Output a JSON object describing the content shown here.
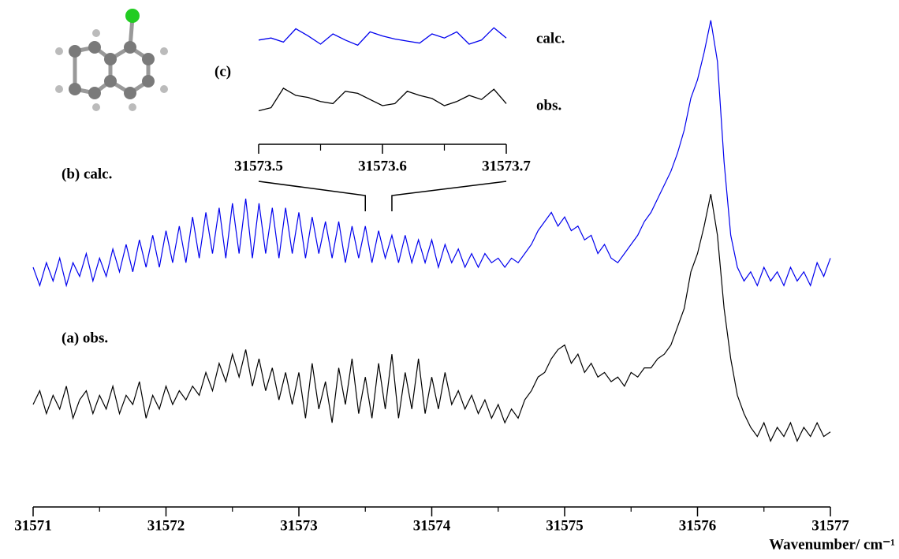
{
  "chart_data": [
    {
      "type": "line",
      "x_label": "Wavenumber/ cm⁻¹",
      "x": [
        31571,
        31571.05,
        31571.1,
        31571.15,
        31571.2,
        31571.25,
        31571.3,
        31571.35,
        31571.4,
        31571.45,
        31571.5,
        31571.55,
        31571.6,
        31571.65,
        31571.7,
        31571.75,
        31571.8,
        31571.85,
        31571.9,
        31571.95,
        31572,
        31572.05,
        31572.1,
        31572.15,
        31572.2,
        31572.25,
        31572.3,
        31572.35,
        31572.4,
        31572.45,
        31572.5,
        31572.55,
        31572.6,
        31572.65,
        31572.7,
        31572.75,
        31572.8,
        31572.85,
        31572.9,
        31572.95,
        31573,
        31573.05,
        31573.1,
        31573.15,
        31573.2,
        31573.25,
        31573.3,
        31573.35,
        31573.4,
        31573.45,
        31573.5,
        31573.55,
        31573.6,
        31573.65,
        31573.7,
        31573.75,
        31573.8,
        31573.85,
        31573.9,
        31573.95,
        31574,
        31574.05,
        31574.1,
        31574.15,
        31574.2,
        31574.25,
        31574.3,
        31574.35,
        31574.4,
        31574.45,
        31574.5,
        31574.55,
        31574.6,
        31574.65,
        31574.7,
        31574.75,
        31574.8,
        31574.85,
        31574.9,
        31574.95,
        31575,
        31575.05,
        31575.1,
        31575.15,
        31575.2,
        31575.25,
        31575.3,
        31575.35,
        31575.4,
        31575.45,
        31575.5,
        31575.55,
        31575.6,
        31575.65,
        31575.7,
        31575.75,
        31575.8,
        31575.85,
        31575.9,
        31575.95,
        31576,
        31576.05,
        31576.1,
        31576.15,
        31576.2,
        31576.25,
        31576.3,
        31576.35,
        31576.4,
        31576.45,
        31576.5,
        31576.55,
        31576.6,
        31576.65,
        31576.7,
        31576.75,
        31576.8,
        31576.85,
        31576.9,
        31576.95,
        31577
      ],
      "series": [
        {
          "name": "(a) obs.",
          "color": "#000000",
          "values": [
            15,
            18,
            13,
            17,
            14,
            19,
            12,
            16,
            18,
            13,
            17,
            14,
            19,
            13,
            17,
            15,
            20,
            12,
            17,
            14,
            19,
            15,
            18,
            16,
            19,
            17,
            22,
            18,
            24,
            20,
            26,
            21,
            27,
            19,
            25,
            18,
            23,
            16,
            22,
            15,
            22,
            12,
            24,
            14,
            20,
            11,
            23,
            15,
            25,
            13,
            21,
            12,
            24,
            14,
            26,
            12,
            22,
            14,
            25,
            13,
            21,
            14,
            22,
            15,
            18,
            14,
            17,
            13,
            16,
            12,
            15,
            11,
            14,
            12,
            16,
            18,
            21,
            22,
            25,
            27,
            28,
            24,
            26,
            22,
            24,
            21,
            22,
            20,
            21,
            19,
            22,
            21,
            23,
            23,
            25,
            26,
            28,
            32,
            36,
            44,
            48,
            54,
            61,
            52,
            36,
            25,
            17,
            13,
            10,
            8,
            11,
            7,
            10,
            8,
            11,
            7,
            10,
            8,
            11,
            8,
            9
          ]
        },
        {
          "name": "(b) calc.",
          "color": "#0000ee",
          "values": [
            45,
            41,
            46,
            42,
            47,
            41,
            46,
            43,
            48,
            42,
            47,
            43,
            49,
            44,
            50,
            44,
            51,
            45,
            52,
            45,
            53,
            46,
            54,
            46,
            56,
            47,
            57,
            48,
            58,
            47,
            59,
            48,
            60,
            47,
            59,
            48,
            58,
            47,
            58,
            48,
            57,
            47,
            56,
            48,
            55,
            47,
            55,
            46,
            54,
            47,
            54,
            46,
            53,
            47,
            52,
            46,
            52,
            46,
            51,
            46,
            51,
            45,
            50,
            46,
            49,
            45,
            48,
            45,
            48,
            46,
            47,
            45,
            47,
            46,
            48,
            50,
            53,
            55,
            57,
            54,
            56,
            53,
            54,
            51,
            52,
            48,
            50,
            47,
            46,
            48,
            50,
            52,
            55,
            57,
            60,
            63,
            66,
            70,
            75,
            82,
            86,
            92,
            99,
            90,
            68,
            52,
            45,
            42,
            44,
            41,
            45,
            42,
            44,
            41,
            45,
            42,
            44,
            41,
            46,
            43,
            47
          ]
        }
      ],
      "xlim": [
        31571,
        31577
      ],
      "xticks": [
        31571,
        31572,
        31573,
        31574,
        31575,
        31576,
        31577
      ],
      "xticks_minor": [
        31571.5,
        31572.5,
        31573.5,
        31574.5,
        31575.5,
        31576.5
      ],
      "ylim": [
        0,
        100
      ]
    },
    {
      "type": "line",
      "label": "(c)",
      "x": [
        31573.5,
        31573.51,
        31573.52,
        31573.53,
        31573.54,
        31573.55,
        31573.56,
        31573.57,
        31573.58,
        31573.59,
        31573.6,
        31573.61,
        31573.62,
        31573.63,
        31573.64,
        31573.65,
        31573.66,
        31573.67,
        31573.68,
        31573.69,
        31573.7
      ],
      "series": [
        {
          "name": "calc.",
          "color": "#0000ee",
          "values": [
            84,
            86,
            82,
            95,
            88,
            80,
            90,
            84,
            79,
            92,
            88,
            85,
            83,
            81,
            90,
            86,
            92,
            80,
            84,
            96,
            86
          ]
        },
        {
          "name": "obs.",
          "color": "#000000",
          "values": [
            15,
            18,
            37,
            30,
            28,
            24,
            22,
            34,
            32,
            26,
            20,
            22,
            34,
            30,
            27,
            20,
            24,
            30,
            26,
            36,
            22
          ]
        }
      ],
      "xlim": [
        31573.5,
        31573.7
      ],
      "xticks": [
        31573.5,
        31573.6,
        31573.7
      ],
      "xticks_minor": [
        31573.55,
        31573.65
      ],
      "ylim": [
        0,
        100
      ]
    }
  ]
}
